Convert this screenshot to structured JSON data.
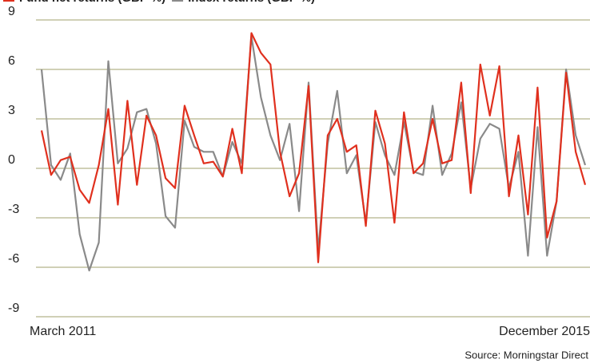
{
  "chart_data": {
    "type": "line",
    "categories": [
      "March 2011",
      null,
      null,
      null,
      null,
      null,
      null,
      null,
      null,
      null,
      null,
      null,
      null,
      null,
      null,
      null,
      null,
      null,
      null,
      null,
      null,
      null,
      null,
      null,
      null,
      null,
      null,
      null,
      null,
      null,
      null,
      null,
      null,
      null,
      null,
      null,
      null,
      null,
      null,
      null,
      null,
      null,
      null,
      null,
      null,
      null,
      null,
      null,
      null,
      null,
      null,
      null,
      null,
      null,
      null,
      null,
      null,
      "December 2015"
    ],
    "series": [
      {
        "name": "Fund net returns (GBP %)",
        "color": "#e0301e",
        "values": [
          2.3,
          -0.4,
          0.5,
          0.7,
          -1.3,
          -2.1,
          0.2,
          3.6,
          -2.2,
          4.1,
          -1.0,
          3.2,
          2.0,
          -0.6,
          -1.2,
          3.8,
          2.0,
          0.3,
          0.4,
          -0.5,
          2.4,
          -0.3,
          8.2,
          7.0,
          6.3,
          1.0,
          -1.7,
          -0.3,
          5.0,
          -5.7,
          2.0,
          3.0,
          1.0,
          1.4,
          -3.5,
          3.5,
          1.5,
          -3.3,
          3.4,
          -0.3,
          0.3,
          3.0,
          0.3,
          0.5,
          5.2,
          -1.5,
          6.3,
          3.2,
          6.2,
          -1.7,
          2.0,
          -2.8,
          4.9,
          -4.2,
          -2.0,
          5.8,
          1.0,
          -1.0
        ]
      },
      {
        "name": "Index returns (GBP %)",
        "color": "#8a8a8a",
        "values": [
          6.0,
          0.2,
          -0.7,
          0.9,
          -4.0,
          -6.2,
          -4.5,
          6.5,
          0.3,
          1.2,
          3.4,
          3.6,
          1.5,
          -2.9,
          -3.6,
          2.9,
          1.3,
          1.0,
          1.0,
          -0.5,
          1.6,
          0.3,
          8.0,
          4.3,
          2.0,
          0.5,
          2.7,
          -2.6,
          5.2,
          -5.0,
          1.5,
          4.7,
          -0.3,
          0.8,
          -3.3,
          2.8,
          0.8,
          -0.4,
          2.8,
          -0.2,
          -0.4,
          3.8,
          -0.4,
          0.9,
          4.0,
          -1.2,
          1.8,
          2.7,
          2.4,
          -1.2,
          1.0,
          -5.3,
          2.5,
          -5.3,
          -2.0,
          6.0,
          2.0,
          0.2
        ]
      }
    ],
    "ylim": [
      -9,
      9
    ],
    "yticks": [
      -9,
      -6,
      -3,
      0,
      3,
      6,
      9
    ],
    "grid": true,
    "source": "Source: Morningstar Direct"
  }
}
